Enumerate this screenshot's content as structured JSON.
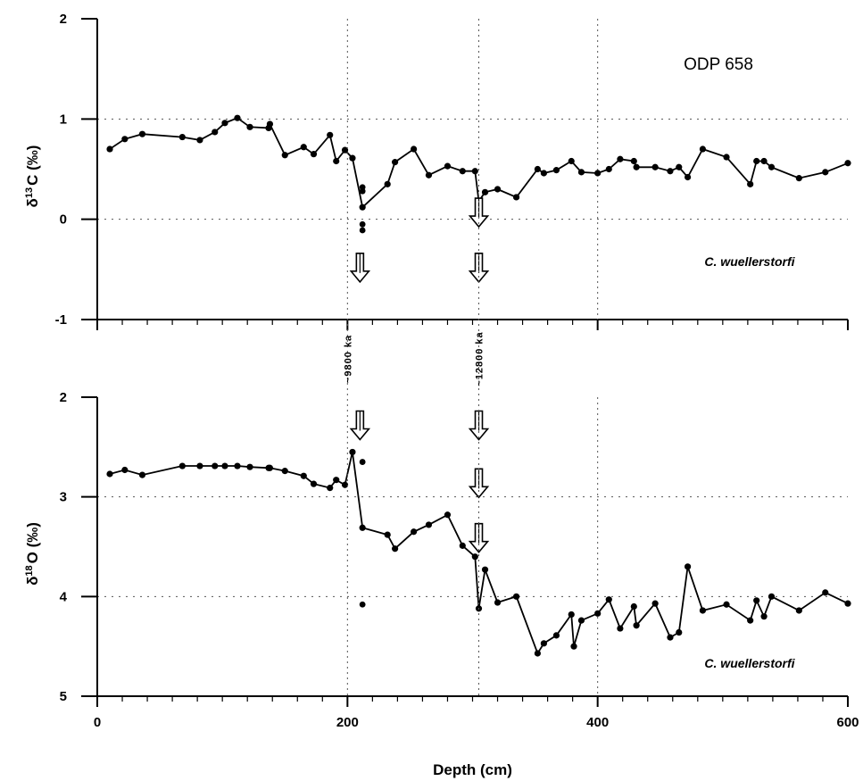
{
  "chart_data": [
    {
      "type": "line",
      "panel": "top",
      "ylabel_main": "δ",
      "ylabel_sup": "13",
      "ylabel_rest": "C (‰)",
      "ylim": [
        -1,
        2
      ],
      "yticks": [
        2,
        1,
        0,
        -1
      ],
      "ytick_labels": [
        "2",
        "1",
        "0",
        "-1"
      ],
      "xlim": [
        0,
        600
      ],
      "xticks": [
        0,
        200,
        400,
        600
      ],
      "annotation": "ODP 658",
      "species_label": "C. wuellerstorfi",
      "grid_dashed_y": [
        1,
        0
      ],
      "series": [
        {
          "x": [
            10,
            22,
            36,
            68,
            82,
            94,
            102,
            112,
            122,
            137,
            138,
            150,
            165,
            173,
            186,
            191,
            198,
            204,
            212,
            232,
            238,
            253,
            265,
            280,
            292,
            302,
            305,
            310,
            320,
            335,
            352,
            357,
            367,
            379,
            387,
            400,
            409,
            418,
            429,
            431,
            446,
            458,
            465,
            472,
            484,
            503,
            522,
            527,
            533,
            539,
            561,
            582,
            600
          ],
          "y": [
            0.7,
            0.8,
            0.85,
            0.82,
            0.79,
            0.87,
            0.96,
            1.01,
            0.92,
            0.91,
            0.95,
            0.64,
            0.72,
            0.65,
            0.84,
            0.58,
            0.69,
            0.61,
            0.12,
            0.35,
            0.57,
            0.7,
            0.44,
            0.53,
            0.48,
            0.48,
            0.18,
            0.27,
            0.3,
            0.22,
            0.5,
            0.46,
            0.49,
            0.58,
            0.47,
            0.46,
            0.5,
            0.6,
            0.58,
            0.52,
            0.52,
            0.48,
            0.52,
            0.42,
            0.7,
            0.62,
            0.35,
            0.58,
            0.58,
            0.52,
            0.41,
            0.47,
            0.56
          ]
        }
      ],
      "isolated_points": [
        {
          "x": 212,
          "y": 0.32
        },
        {
          "x": 212,
          "y": 0.28
        },
        {
          "x": 212,
          "y": -0.05
        },
        {
          "x": 212,
          "y": -0.11
        }
      ],
      "arrows": [
        {
          "x": 210,
          "y": -0.5
        },
        {
          "x": 305,
          "y": 0.05
        },
        {
          "x": 305,
          "y": -0.5
        }
      ]
    },
    {
      "type": "line",
      "panel": "bottom",
      "ylabel_main": "δ",
      "ylabel_sup": "18",
      "ylabel_rest": "O (‰)",
      "ylim": [
        5,
        2
      ],
      "yticks": [
        2,
        3,
        4,
        5
      ],
      "ytick_labels": [
        "2",
        "3",
        "4",
        "5"
      ],
      "xlim": [
        0,
        600
      ],
      "xticks": [
        0,
        200,
        400,
        600
      ],
      "xtick_labels": [
        "0",
        "200",
        "400",
        "600"
      ],
      "xlabel": "Depth (cm)",
      "species_label": "C. wuellerstorfi",
      "grid_dashed_y": [
        3,
        4
      ],
      "series": [
        {
          "x": [
            10,
            22,
            36,
            68,
            82,
            94,
            102,
            112,
            122,
            137,
            138,
            150,
            165,
            173,
            186,
            191,
            198,
            204,
            212,
            232,
            238,
            253,
            265,
            280,
            292,
            302,
            305,
            310,
            320,
            335,
            352,
            357,
            367,
            379,
            381,
            387,
            400,
            409,
            418,
            429,
            431,
            446,
            458,
            465,
            472,
            484,
            503,
            522,
            527,
            533,
            539,
            561,
            582,
            600
          ],
          "y": [
            2.77,
            2.73,
            2.78,
            2.69,
            2.69,
            2.69,
            2.69,
            2.69,
            2.7,
            2.71,
            2.71,
            2.74,
            2.79,
            2.87,
            2.91,
            2.83,
            2.88,
            2.55,
            3.31,
            3.38,
            3.52,
            3.35,
            3.28,
            3.18,
            3.49,
            3.6,
            4.12,
            3.73,
            4.06,
            4.0,
            4.57,
            4.47,
            4.39,
            4.18,
            4.5,
            4.24,
            4.17,
            4.03,
            4.32,
            4.1,
            4.29,
            4.07,
            4.41,
            4.36,
            3.7,
            4.14,
            4.08,
            4.24,
            4.04,
            4.2,
            4.0,
            4.14,
            3.96,
            4.07
          ]
        }
      ],
      "isolated_points": [
        {
          "x": 212,
          "y": 2.65
        },
        {
          "x": 212,
          "y": 4.08
        }
      ],
      "arrows": [
        {
          "x": 210,
          "y": 2.3
        },
        {
          "x": 305,
          "y": 2.3
        },
        {
          "x": 305,
          "y": 2.88
        },
        {
          "x": 305,
          "y": 3.43
        }
      ]
    }
  ],
  "event_lines": [
    {
      "x": 200,
      "label": "~9800 ka"
    },
    {
      "x": 305,
      "label": "~12800 ka"
    }
  ]
}
